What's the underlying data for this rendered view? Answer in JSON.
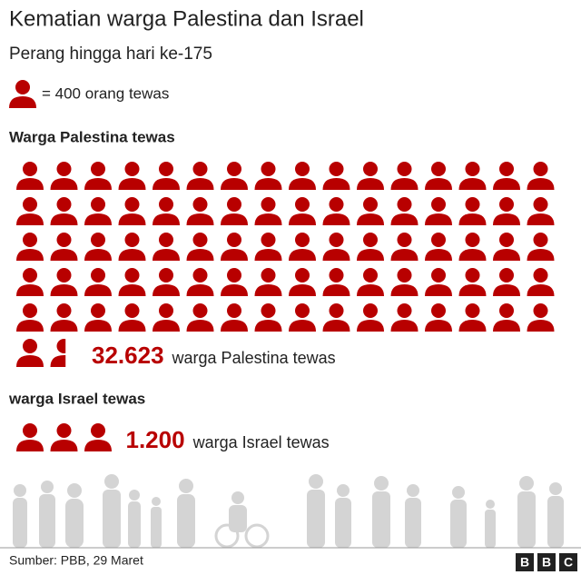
{
  "chart_data": {
    "type": "pictogram",
    "title": "Kematian warga Palestina dan Israel",
    "subtitle": "Perang hingga hari ke-175",
    "unit": 400,
    "unit_label": "= 400 orang tewas",
    "series": [
      {
        "name": "Warga Palestina tewas",
        "values": [
          32623
        ],
        "value_labels": [
          "32.623"
        ],
        "label": "warga Palestina tewas",
        "color": "#b80000"
      },
      {
        "name": "warga Israel tewas",
        "values": [
          1200
        ],
        "value_labels": [
          "1.200"
        ],
        "label": "warga Israel tewas",
        "color": "#b80000"
      }
    ]
  },
  "source": "Sumber: PBB, 29 Maret",
  "logo": [
    "B",
    "B",
    "C"
  ]
}
